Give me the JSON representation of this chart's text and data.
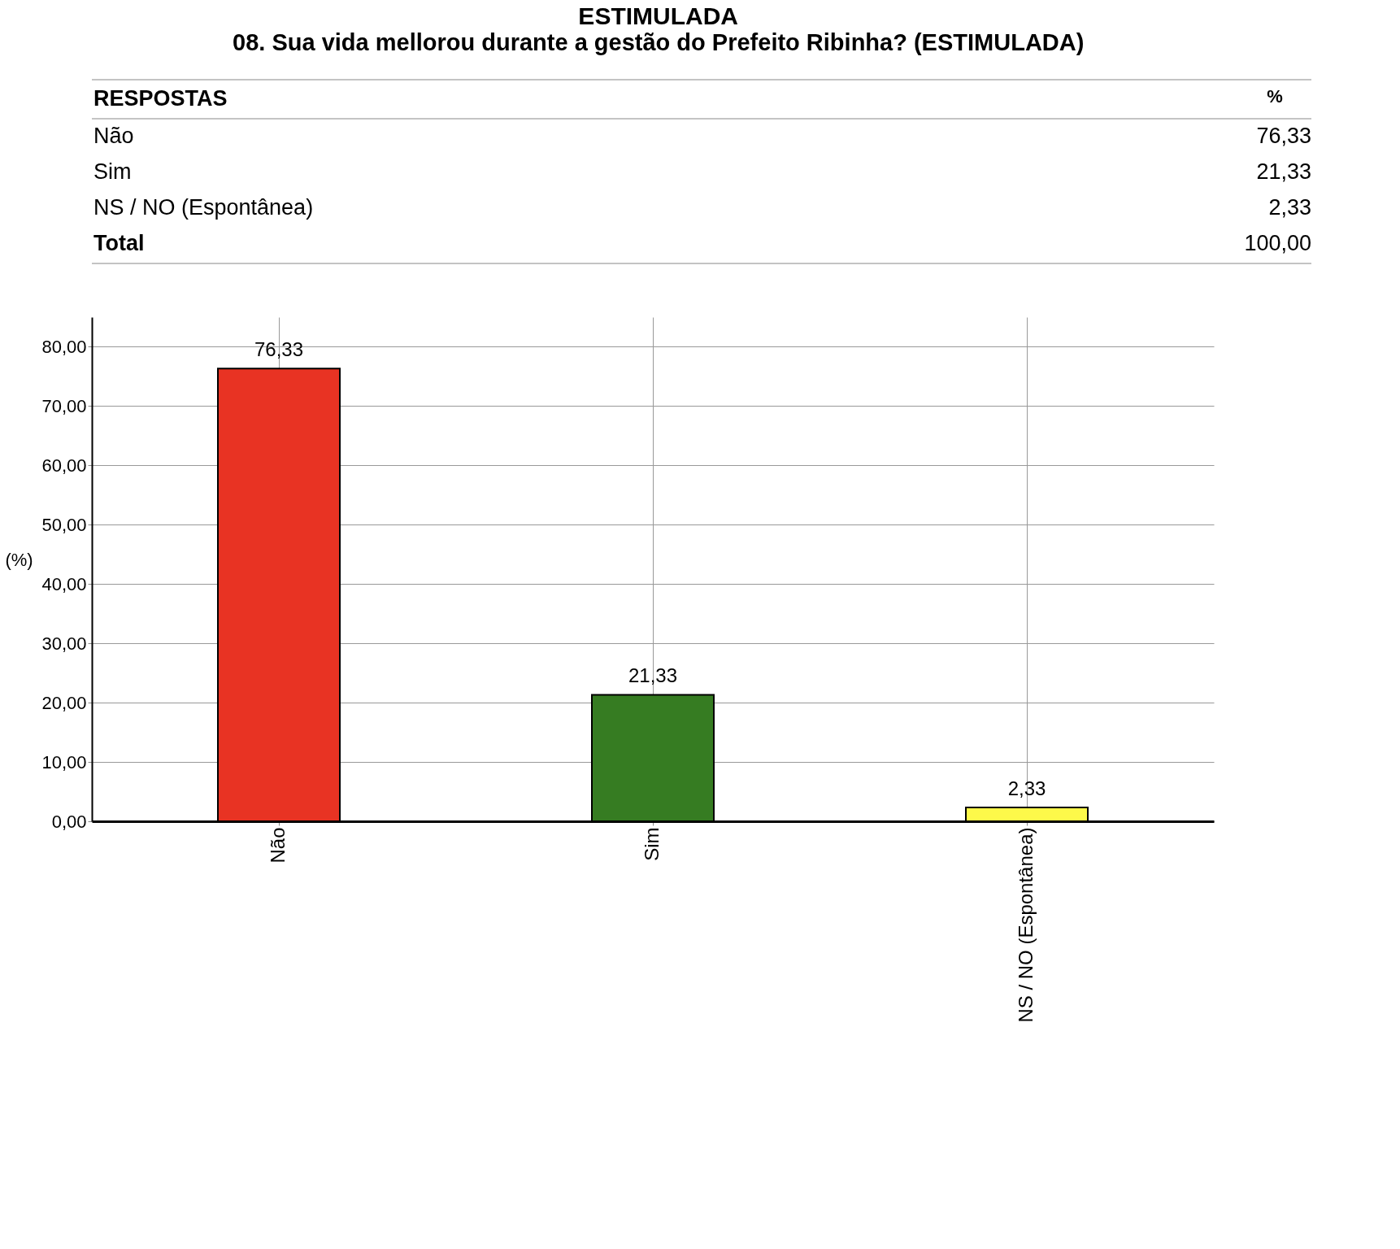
{
  "chart_data": {
    "type": "bar",
    "title": "ESTIMULADA",
    "subtitle": "08. Sua vida mellorou durante a gestão do Prefeito Ribinha? (ESTIMULADA)",
    "ylabel": "(%)",
    "categories": [
      "Não",
      "Sim",
      "NS / NO (Espontânea)"
    ],
    "values": [
      76.33,
      21.33,
      2.33
    ],
    "colors": [
      "#e83323",
      "#367c22",
      "#fdf94a"
    ],
    "value_labels": [
      "76,33",
      "21,33",
      "2,33"
    ],
    "annotations": [
      "RESPOSTAS",
      "%",
      "Total",
      "100,00"
    ],
    "ylim": [
      0,
      85
    ],
    "yticks": [
      {
        "value": 0,
        "label": "0,00"
      },
      {
        "value": 10,
        "label": "10,00"
      },
      {
        "value": 20,
        "label": "20,00"
      },
      {
        "value": 30,
        "label": "30,00"
      },
      {
        "value": 40,
        "label": "40,00"
      },
      {
        "value": 50,
        "label": "50,00"
      },
      {
        "value": 60,
        "label": "60,00"
      },
      {
        "value": 70,
        "label": "70,00"
      },
      {
        "value": 80,
        "label": "80,00"
      }
    ],
    "grid": true
  }
}
